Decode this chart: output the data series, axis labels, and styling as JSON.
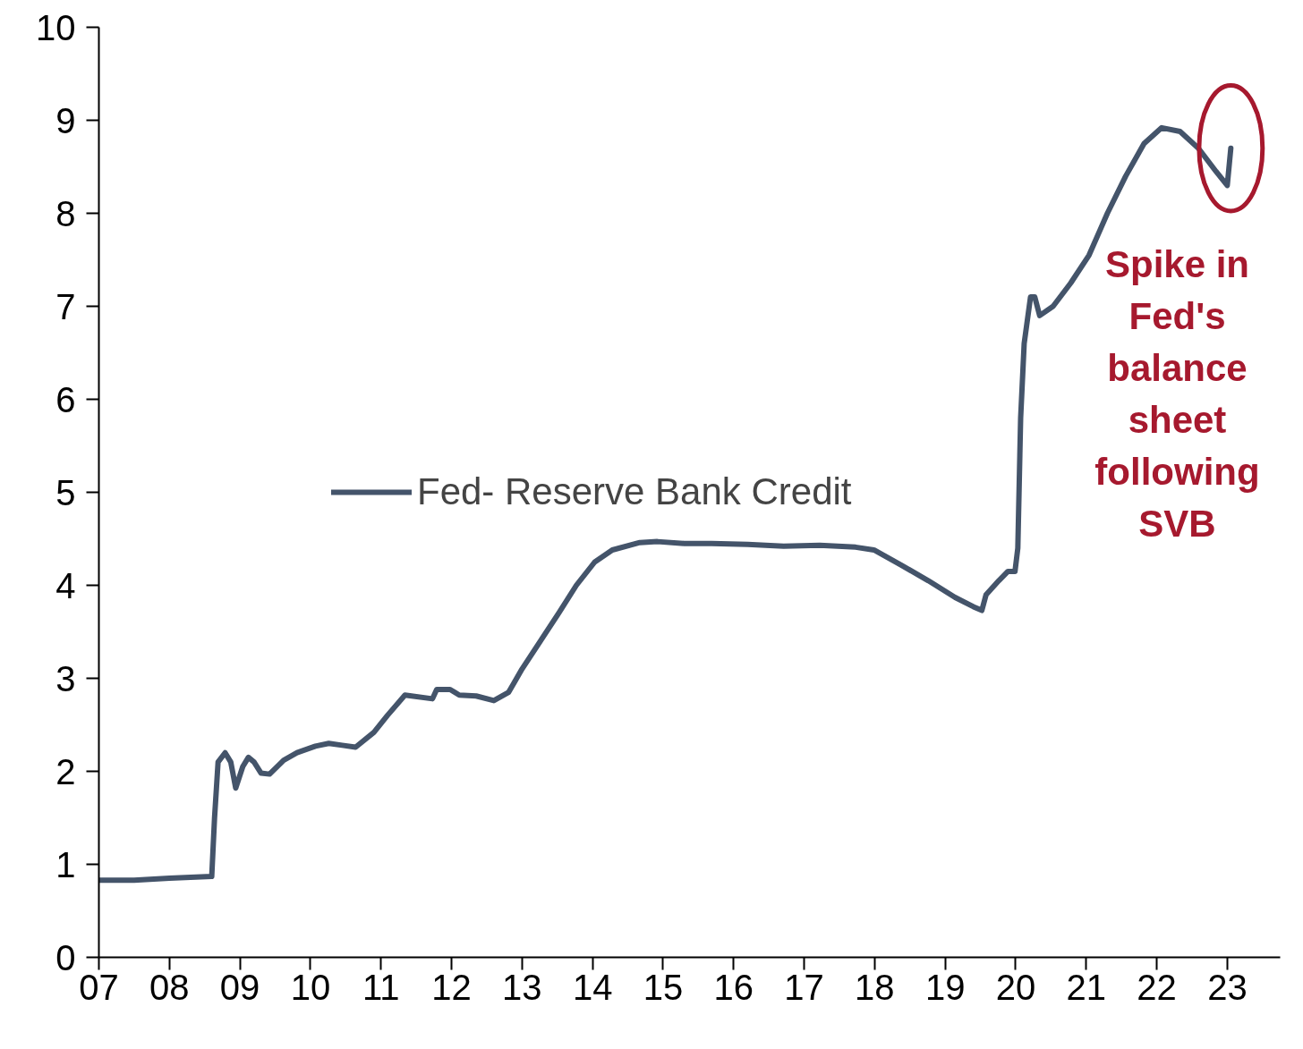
{
  "chart_data": {
    "type": "line",
    "legend": "left",
    "grid": false,
    "xlim": [
      2007,
      2023.75
    ],
    "ylim": [
      0,
      10
    ],
    "xticks": [
      {
        "value": 2007,
        "label": "07"
      },
      {
        "value": 2008,
        "label": "08"
      },
      {
        "value": 2009,
        "label": "09"
      },
      {
        "value": 2010,
        "label": "10"
      },
      {
        "value": 2011,
        "label": "11"
      },
      {
        "value": 2012,
        "label": "12"
      },
      {
        "value": 2013,
        "label": "13"
      },
      {
        "value": 2014,
        "label": "14"
      },
      {
        "value": 2015,
        "label": "15"
      },
      {
        "value": 2016,
        "label": "16"
      },
      {
        "value": 2017,
        "label": "17"
      },
      {
        "value": 2018,
        "label": "18"
      },
      {
        "value": 2019,
        "label": "19"
      },
      {
        "value": 2020,
        "label": "20"
      },
      {
        "value": 2021,
        "label": "21"
      },
      {
        "value": 2022,
        "label": "22"
      },
      {
        "value": 2023,
        "label": "23"
      }
    ],
    "yticks": [
      0,
      1,
      2,
      3,
      4,
      5,
      6,
      7,
      8,
      9,
      10
    ],
    "annotations": [
      "Spike in Fed's balance sheet following SVB"
    ],
    "series": [
      {
        "name": "Fed- Reserve Bank Credit",
        "color": "#44546a",
        "x": [
          2007,
          2007.5,
          2008,
          2008.6,
          2008.64,
          2008.69,
          2008.79,
          2008.87,
          2008.94,
          2009.04,
          2009.12,
          2009.2,
          2009.3,
          2009.42,
          2009.62,
          2009.81,
          2010.07,
          2010.26,
          2010.45,
          2010.64,
          2010.9,
          2011.09,
          2011.34,
          2011.73,
          2011.79,
          2011.98,
          2012.11,
          2012.35,
          2012.6,
          2012.81,
          2013.0,
          2013.26,
          2013.52,
          2013.77,
          2014.03,
          2014.28,
          2014.67,
          2014.92,
          2015.3,
          2015.69,
          2016.2,
          2016.71,
          2017.22,
          2017.73,
          2017.99,
          2018.37,
          2018.76,
          2019.14,
          2019.4,
          2019.52,
          2019.58,
          2019.76,
          2019.89,
          2019.99,
          2020.03,
          2020.07,
          2020.12,
          2020.21,
          2020.27,
          2020.34,
          2020.53,
          2020.78,
          2021.04,
          2021.3,
          2021.56,
          2021.82,
          2022.07,
          2022.33,
          2022.59,
          2022.84,
          2023.0,
          2023.05
        ],
        "values": [
          0.83,
          0.83,
          0.85,
          0.87,
          1.5,
          2.1,
          2.2,
          2.1,
          1.82,
          2.05,
          2.15,
          2.1,
          1.98,
          1.97,
          2.12,
          2.2,
          2.27,
          2.3,
          2.28,
          2.26,
          2.42,
          2.6,
          2.82,
          2.78,
          2.88,
          2.88,
          2.82,
          2.81,
          2.76,
          2.85,
          3.1,
          3.4,
          3.7,
          4.0,
          4.25,
          4.38,
          4.46,
          4.47,
          4.45,
          4.45,
          4.44,
          4.42,
          4.43,
          4.41,
          4.38,
          4.22,
          4.05,
          3.87,
          3.77,
          3.73,
          3.9,
          4.05,
          4.15,
          4.15,
          4.4,
          5.8,
          6.6,
          7.1,
          7.1,
          6.9,
          7.0,
          7.25,
          7.55,
          8.0,
          8.4,
          8.75,
          8.92,
          8.88,
          8.7,
          8.45,
          8.3,
          8.7
        ]
      }
    ]
  }
}
